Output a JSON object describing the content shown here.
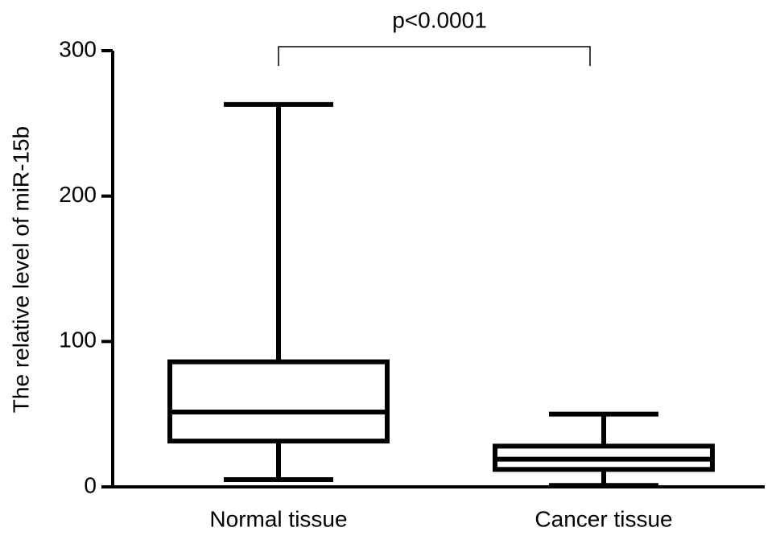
{
  "chart_data": {
    "type": "box",
    "ylabel": "The relative level of miR-15b",
    "categories": [
      "Normal tissue",
      "Cancer tissue"
    ],
    "boxes": [
      {
        "min": 5,
        "q1": 31.5,
        "median": 51.5,
        "q3": 86,
        "max": 263
      },
      {
        "min": 1,
        "q1": 12,
        "median": 19,
        "q3": 28,
        "max": 50
      }
    ],
    "annotation": "p<0.0001",
    "color": "#000000",
    "ylim": [
      0,
      300
    ],
    "yticks": [
      0,
      100,
      200,
      300
    ]
  }
}
